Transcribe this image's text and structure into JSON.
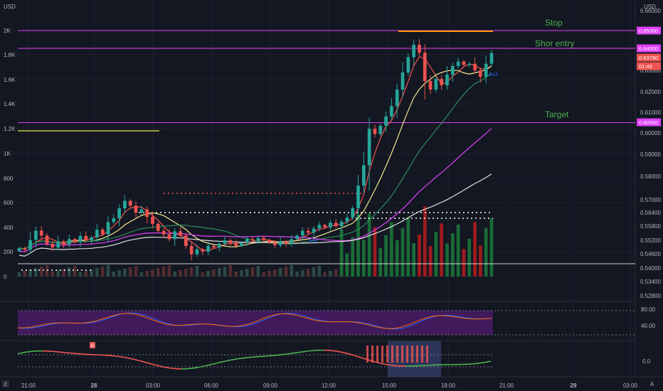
{
  "chart_data": {
    "type": "candlestick",
    "currency_left": "USD",
    "currency_right": "USD",
    "left_axis_ticks": [
      "2K",
      "1.8K",
      "1.6K",
      "1.4K",
      "1.2K",
      "1K",
      "800",
      "600",
      "400",
      "200",
      "0"
    ],
    "left_axis_values": [
      2000,
      1800,
      1600,
      1400,
      1200,
      1000,
      800,
      600,
      400,
      200,
      0
    ],
    "right_axis_ticks": [
      "0.66000",
      "0.65000",
      "0.64000",
      "0.63000",
      "0.62000",
      "0.61000",
      "0.60000",
      "0.59000",
      "0.58000",
      "0.57000",
      "0.56400",
      "0.55800",
      "0.55200",
      "0.54600",
      "0.54000",
      "0.53400",
      "0.52800"
    ],
    "right_axis_values": [
      0.66,
      0.65,
      0.64,
      0.63,
      0.62,
      0.61,
      0.6,
      0.59,
      0.58,
      0.57,
      0.564,
      0.558,
      0.552,
      0.546,
      0.54,
      0.534,
      0.528
    ],
    "time_ticks": [
      "21:00",
      "28",
      "03:00",
      "06:00",
      "09:00",
      "12:00",
      "15:00",
      "18:00",
      "21:00",
      "29",
      "03:00"
    ],
    "price_tags": [
      {
        "label": "0.65000",
        "color": "#e040fb"
      },
      {
        "label": "0.64000",
        "color": "#e040fb"
      },
      {
        "label": "0.63790",
        "color": "#ef5350"
      },
      {
        "label": "01:43",
        "color": "#ef5350"
      },
      {
        "label": "0.60500",
        "color": "#e040fb"
      }
    ],
    "annotations": [
      {
        "text": "Stop",
        "price": 0.65
      },
      {
        "text": "Shor entry",
        "price": 0.64
      },
      {
        "text": "Target",
        "price": 0.605
      }
    ],
    "horizontal_levels": [
      0.65,
      0.64,
      0.605
    ],
    "ema_label": "A13",
    "signal_marker": "R",
    "osc1_ticks": [
      "80.00",
      "40.00"
    ],
    "osc1_values": [
      80,
      40
    ],
    "osc2_ticks": [
      "0.0"
    ],
    "colors": {
      "background": "#131722",
      "up": "#26a69a",
      "down": "#ef5350",
      "level": "#e040fb",
      "annotation": "#4caf50"
    },
    "candles_open_close": [
      [
        0.5472,
        0.5485
      ],
      [
        0.5485,
        0.5478
      ],
      [
        0.5478,
        0.5521
      ],
      [
        0.5521,
        0.5561
      ],
      [
        0.5561,
        0.554
      ],
      [
        0.554,
        0.5505
      ],
      [
        0.5505,
        0.5488
      ],
      [
        0.5488,
        0.5515
      ],
      [
        0.5515,
        0.5502
      ],
      [
        0.5502,
        0.5525
      ],
      [
        0.5525,
        0.5512
      ],
      [
        0.5512,
        0.5538
      ],
      [
        0.5538,
        0.552
      ],
      [
        0.552,
        0.5532
      ],
      [
        0.5532,
        0.5565
      ],
      [
        0.5565,
        0.5545
      ],
      [
        0.5545,
        0.5598
      ],
      [
        0.5598,
        0.5615
      ],
      [
        0.5615,
        0.566
      ],
      [
        0.566,
        0.5695
      ],
      [
        0.5695,
        0.5672
      ],
      [
        0.5672,
        0.564
      ],
      [
        0.564,
        0.5655
      ],
      [
        0.5655,
        0.5621
      ],
      [
        0.5621,
        0.559
      ],
      [
        0.559,
        0.556
      ],
      [
        0.556,
        0.5545
      ],
      [
        0.5545,
        0.5525
      ],
      [
        0.5525,
        0.5558
      ],
      [
        0.5558,
        0.554
      ],
      [
        0.554,
        0.5495
      ],
      [
        0.5495,
        0.5458
      ],
      [
        0.5458,
        0.548
      ],
      [
        0.548,
        0.547
      ],
      [
        0.547,
        0.5495
      ],
      [
        0.5495,
        0.5488
      ],
      [
        0.5488,
        0.5505
      ],
      [
        0.5505,
        0.552
      ],
      [
        0.552,
        0.5508
      ],
      [
        0.5508,
        0.5495
      ],
      [
        0.5495,
        0.551
      ],
      [
        0.551,
        0.5525
      ],
      [
        0.5525,
        0.5518
      ],
      [
        0.5518,
        0.553
      ],
      [
        0.553,
        0.5522
      ],
      [
        0.5522,
        0.551
      ],
      [
        0.551,
        0.5498
      ],
      [
        0.5498,
        0.5515
      ],
      [
        0.5515,
        0.5505
      ],
      [
        0.5505,
        0.5525
      ],
      [
        0.5525,
        0.554
      ],
      [
        0.554,
        0.556
      ],
      [
        0.556,
        0.5552
      ],
      [
        0.5552,
        0.557
      ],
      [
        0.557,
        0.5585
      ],
      [
        0.5585,
        0.5575
      ],
      [
        0.5575,
        0.5595
      ],
      [
        0.5595,
        0.558
      ],
      [
        0.558,
        0.56
      ],
      [
        0.56,
        0.5618
      ],
      [
        0.5618,
        0.566
      ],
      [
        0.566,
        0.576
      ],
      [
        0.576,
        0.585
      ],
      [
        0.585,
        0.602
      ],
      [
        0.602,
        0.5995
      ],
      [
        0.5995,
        0.6035
      ],
      [
        0.6035,
        0.608
      ],
      [
        0.608,
        0.613
      ],
      [
        0.613,
        0.621
      ],
      [
        0.621,
        0.629
      ],
      [
        0.629,
        0.636
      ],
      [
        0.636,
        0.642
      ],
      [
        0.642,
        0.638
      ],
      [
        0.638,
        0.625
      ],
      [
        0.625,
        0.621
      ],
      [
        0.621,
        0.626
      ],
      [
        0.626,
        0.623
      ],
      [
        0.623,
        0.628
      ],
      [
        0.628,
        0.632
      ],
      [
        0.632,
        0.634
      ],
      [
        0.634,
        0.6325
      ],
      [
        0.6325,
        0.633
      ],
      [
        0.633,
        0.63
      ],
      [
        0.63,
        0.627
      ],
      [
        0.627,
        0.633
      ],
      [
        0.633,
        0.6379
      ]
    ]
  }
}
